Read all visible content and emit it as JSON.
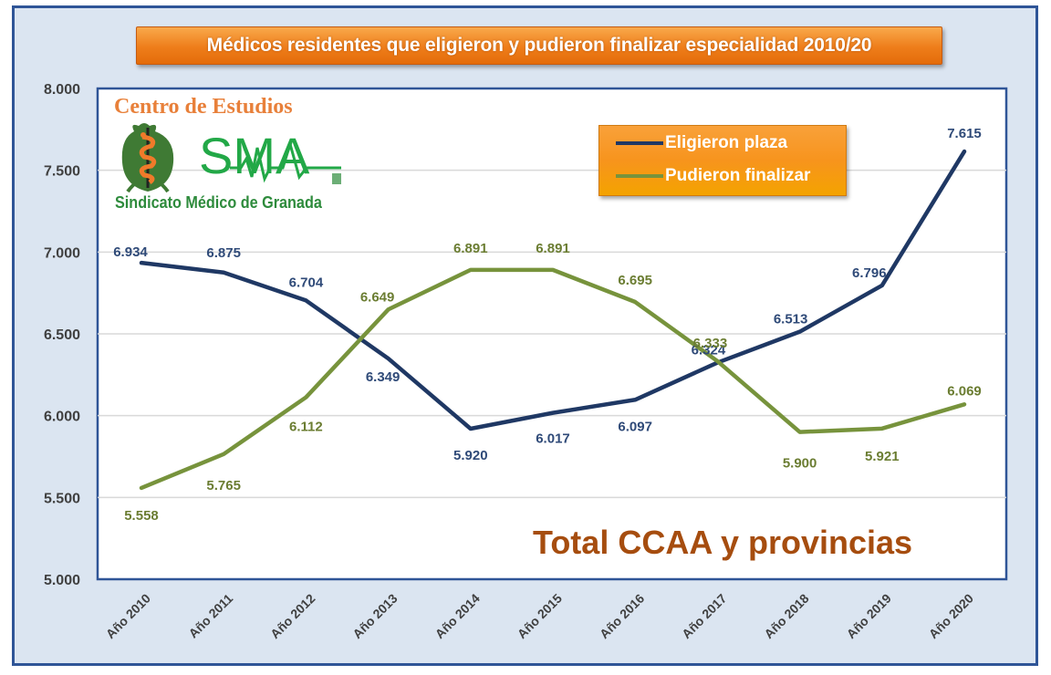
{
  "chart_data": {
    "type": "line",
    "title": "Médicos residentes que eligieron y pudieron finalizar especialidad 2010/20",
    "subtitle_annotation": "Total CCAA y provincias",
    "xlabel": "",
    "ylabel": "",
    "categories": [
      "Año 2010",
      "Año 2011",
      "Año 2012",
      "Año 2013",
      "Año 2014",
      "Año 2015",
      "Año 2016",
      "Año 2017",
      "Año 2018",
      "Año 2019",
      "Año 2020"
    ],
    "ylim": [
      5000,
      8000
    ],
    "yticks": [
      5000,
      5500,
      6000,
      6500,
      7000,
      7500,
      8000
    ],
    "ytick_labels": [
      "5.000",
      "5.500",
      "6.000",
      "6.500",
      "7.000",
      "7.500",
      "8.000"
    ],
    "grid": true,
    "legend_position": "top-right",
    "series": [
      {
        "name": "Eligieron plaza",
        "color": "#1f3864",
        "values": [
          6934,
          6875,
          6704,
          6349,
          5920,
          6017,
          6097,
          6324,
          6513,
          6796,
          7615
        ],
        "labels": [
          "6.934",
          "6.875",
          "6.704",
          "6.349",
          "5.920",
          "6.017",
          "6.097",
          "6.324",
          "6.513",
          "6.796",
          "7.615"
        ]
      },
      {
        "name": "Pudieron finalizar",
        "color": "#77933c",
        "values": [
          5558,
          5765,
          6112,
          6649,
          6891,
          6891,
          6695,
          6333,
          5900,
          5921,
          6069
        ],
        "labels": [
          "5.558",
          "5.765",
          "6.112",
          "6.649",
          "6.891",
          "6.891",
          "6.695",
          "6.333",
          "5.900",
          "5.921",
          "6.069"
        ]
      }
    ]
  },
  "logo": {
    "line1": "Centro de Estudios",
    "brand": "SMA",
    "line3": "Sindicato Médico de Granada"
  },
  "colors": {
    "title_bg": "#ee7d1a",
    "legend_bg": "#f7941d",
    "annotation": "#a64d0f",
    "frame": "#2f5597",
    "chart_bg": "#dbe5f1"
  }
}
